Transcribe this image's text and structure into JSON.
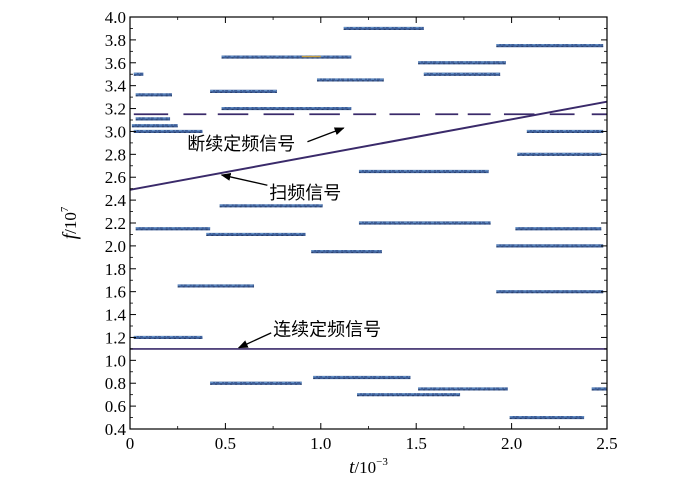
{
  "chart_data": {
    "type": "scatter",
    "xlabel": {
      "var": "t",
      "unit": "/10",
      "exp": "−3"
    },
    "ylabel": {
      "var": "f",
      "unit": "/10",
      "exp": "7"
    },
    "xlim": [
      0,
      2.5
    ],
    "ylim": [
      0.4,
      4.0
    ],
    "x_ticks": [
      "0",
      "0.5",
      "1.0",
      "1.5",
      "2.0",
      "2.5"
    ],
    "y_ticks": [
      "0.4",
      "0.6",
      "0.8",
      "1.0",
      "1.2",
      "1.4",
      "1.6",
      "1.8",
      "2.0",
      "2.2",
      "2.4",
      "2.6",
      "2.8",
      "3.0",
      "3.2",
      "3.4",
      "3.6",
      "3.8",
      "4.0"
    ],
    "colors": {
      "signal": "#3a2a6a",
      "segment": "#3f5f99",
      "segment_light": "#6a9bd0",
      "segment_dark": "#253a60",
      "segment_hot": "#c8a040"
    },
    "continuous_signal": {
      "f": 1.1,
      "t_start": 0,
      "t_end": 2.5
    },
    "sweep_signal": {
      "t_start": 0,
      "f_start": 2.49,
      "t_end": 2.5,
      "f_end": 3.26
    },
    "intermittent_signal": {
      "f": 3.15,
      "segments": [
        [
          0.02,
          0.2
        ],
        [
          0.28,
          0.4
        ],
        [
          0.46,
          0.62
        ],
        [
          0.7,
          0.86
        ],
        [
          0.94,
          1.1
        ],
        [
          1.17,
          1.29
        ],
        [
          1.36,
          1.52
        ],
        [
          1.6,
          1.72
        ],
        [
          1.77,
          1.89
        ],
        [
          1.96,
          2.12
        ],
        [
          2.2,
          2.33
        ],
        [
          2.42,
          2.5
        ]
      ]
    },
    "noise_segments": [
      {
        "f": 3.5,
        "t0": 0.02,
        "t1": 0.07
      },
      {
        "f": 3.32,
        "t0": 0.03,
        "t1": 0.22
      },
      {
        "f": 3.11,
        "t0": 0.03,
        "t1": 0.21
      },
      {
        "f": 3.05,
        "t0": 0.01,
        "t1": 0.25
      },
      {
        "f": 3.0,
        "t0": 0.02,
        "t1": 0.38
      },
      {
        "f": 3.65,
        "t0": 0.48,
        "t1": 1.16
      },
      {
        "f": 3.35,
        "t0": 0.42,
        "t1": 0.77
      },
      {
        "f": 3.2,
        "t0": 0.48,
        "t1": 1.16
      },
      {
        "f": 3.9,
        "t0": 1.12,
        "t1": 1.54
      },
      {
        "f": 3.45,
        "t0": 0.98,
        "t1": 1.33
      },
      {
        "f": 3.6,
        "t0": 1.51,
        "t1": 1.97
      },
      {
        "f": 3.5,
        "t0": 1.54,
        "t1": 1.94
      },
      {
        "f": 3.75,
        "t0": 1.92,
        "t1": 2.48
      },
      {
        "f": 3.0,
        "t0": 2.08,
        "t1": 2.48
      },
      {
        "f": 2.8,
        "t0": 2.03,
        "t1": 2.47
      },
      {
        "f": 2.65,
        "t0": 1.2,
        "t1": 1.88
      },
      {
        "f": 2.35,
        "t0": 0.47,
        "t1": 1.01
      },
      {
        "f": 2.15,
        "t0": 0.03,
        "t1": 0.42
      },
      {
        "f": 2.1,
        "t0": 0.4,
        "t1": 0.92
      },
      {
        "f": 2.2,
        "t0": 1.2,
        "t1": 1.89
      },
      {
        "f": 2.15,
        "t0": 2.02,
        "t1": 2.47
      },
      {
        "f": 2.0,
        "t0": 1.92,
        "t1": 2.48
      },
      {
        "f": 1.95,
        "t0": 0.95,
        "t1": 1.32
      },
      {
        "f": 1.65,
        "t0": 0.25,
        "t1": 0.65
      },
      {
        "f": 1.6,
        "t0": 1.92,
        "t1": 2.48
      },
      {
        "f": 1.2,
        "t0": 0.02,
        "t1": 0.38
      },
      {
        "f": 0.8,
        "t0": 0.42,
        "t1": 0.9
      },
      {
        "f": 0.85,
        "t0": 0.96,
        "t1": 1.47
      },
      {
        "f": 0.75,
        "t0": 1.51,
        "t1": 1.98
      },
      {
        "f": 0.7,
        "t0": 1.19,
        "t1": 1.73
      },
      {
        "f": 0.5,
        "t0": 1.99,
        "t1": 2.38
      },
      {
        "f": 0.75,
        "t0": 2.42,
        "t1": 2.5
      }
    ],
    "annotations": [
      {
        "id": "intermittent",
        "text": "断续定频信号",
        "text_t": 0.3,
        "text_f": 2.9,
        "arrow_from_t": 0.93,
        "arrow_from_f": 2.91,
        "arrow_to_t": 1.12,
        "arrow_to_f": 3.03
      },
      {
        "id": "sweep",
        "text": "扫频信号",
        "text_t": 0.73,
        "text_f": 2.47,
        "arrow_from_t": 0.72,
        "arrow_from_f": 2.53,
        "arrow_to_t": 0.48,
        "arrow_to_f": 2.62
      },
      {
        "id": "continuous",
        "text": "连续定频信号",
        "text_t": 0.75,
        "text_f": 1.28,
        "arrow_from_t": 0.74,
        "arrow_from_f": 1.24,
        "arrow_to_t": 0.57,
        "arrow_to_f": 1.11
      }
    ]
  }
}
